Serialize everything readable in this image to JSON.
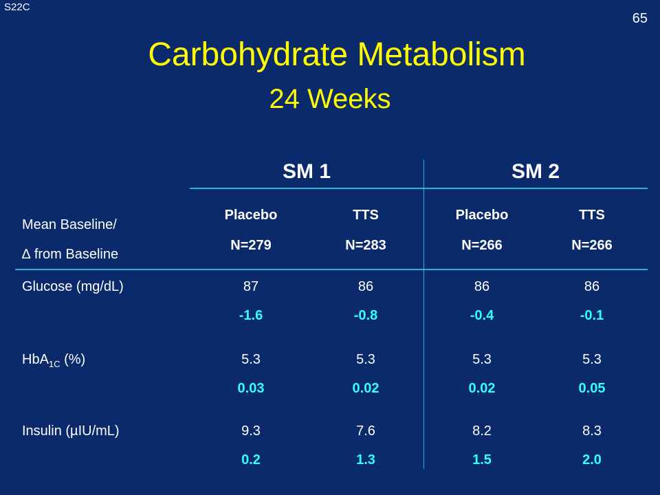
{
  "slide": {
    "code": "S22C",
    "page_number": "65",
    "title": "Carbohydrate Metabolism",
    "subtitle": "24 Weeks"
  },
  "table": {
    "groups": [
      "SM 1",
      "SM 2"
    ],
    "header_label": {
      "line1": "Mean Baseline/",
      "line2_symbol": "∆",
      "line2_text": "from Baseline"
    },
    "columns": [
      {
        "name": "Placebo",
        "n": "N=279"
      },
      {
        "name": "TTS",
        "n": "N=283"
      },
      {
        "name": "Placebo",
        "n": "N=266"
      },
      {
        "name": "TTS",
        "n": "N=266"
      }
    ],
    "rows": [
      {
        "label": "Glucose (mg/dL)",
        "label_main": "Glucose (mg/dL)",
        "cells": [
          {
            "base": "87",
            "delta": "-1.6"
          },
          {
            "base": "86",
            "delta": "-0.8"
          },
          {
            "base": "86",
            "delta": "-0.4"
          },
          {
            "base": "86",
            "delta": "-0.1"
          }
        ]
      },
      {
        "label_prefix": "HbA",
        "label_sub": "1C",
        "label_suffix": " (%)",
        "cells": [
          {
            "base": "5.3",
            "delta": "0.03"
          },
          {
            "base": "5.3",
            "delta": "0.02"
          },
          {
            "base": "5.3",
            "delta": "0.02"
          },
          {
            "base": "5.3",
            "delta": "0.05"
          }
        ]
      },
      {
        "label_prefix": "Insulin (",
        "label_symbol": "µ",
        "label_suffix": "IU/mL)",
        "cells": [
          {
            "base": "9.3",
            "delta": "0.2"
          },
          {
            "base": "7.6",
            "delta": "1.3"
          },
          {
            "base": "8.2",
            "delta": "1.5"
          },
          {
            "base": "8.3",
            "delta": "2.0"
          }
        ]
      }
    ]
  }
}
